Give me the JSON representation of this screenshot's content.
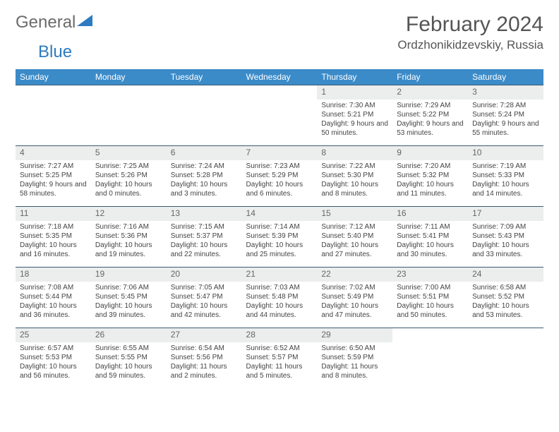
{
  "logo": {
    "main": "General",
    "accent": "Blue"
  },
  "header": {
    "title": "February 2024",
    "location": "Ordzhonikidzevskiy, Russia"
  },
  "colors": {
    "header_bg": "#3b8bc9",
    "header_text": "#ffffff",
    "daynum_bg": "#eceded",
    "week_divider": "#3b5b73",
    "logo_gray": "#6b6b6b",
    "logo_blue": "#2d7bc0"
  },
  "weekdays": [
    "Sunday",
    "Monday",
    "Tuesday",
    "Wednesday",
    "Thursday",
    "Friday",
    "Saturday"
  ],
  "first_weekday_index": 4,
  "days": [
    {
      "n": 1,
      "sr": "7:30 AM",
      "ss": "5:21 PM",
      "dl": "9 hours and 50 minutes."
    },
    {
      "n": 2,
      "sr": "7:29 AM",
      "ss": "5:22 PM",
      "dl": "9 hours and 53 minutes."
    },
    {
      "n": 3,
      "sr": "7:28 AM",
      "ss": "5:24 PM",
      "dl": "9 hours and 55 minutes."
    },
    {
      "n": 4,
      "sr": "7:27 AM",
      "ss": "5:25 PM",
      "dl": "9 hours and 58 minutes."
    },
    {
      "n": 5,
      "sr": "7:25 AM",
      "ss": "5:26 PM",
      "dl": "10 hours and 0 minutes."
    },
    {
      "n": 6,
      "sr": "7:24 AM",
      "ss": "5:28 PM",
      "dl": "10 hours and 3 minutes."
    },
    {
      "n": 7,
      "sr": "7:23 AM",
      "ss": "5:29 PM",
      "dl": "10 hours and 6 minutes."
    },
    {
      "n": 8,
      "sr": "7:22 AM",
      "ss": "5:30 PM",
      "dl": "10 hours and 8 minutes."
    },
    {
      "n": 9,
      "sr": "7:20 AM",
      "ss": "5:32 PM",
      "dl": "10 hours and 11 minutes."
    },
    {
      "n": 10,
      "sr": "7:19 AM",
      "ss": "5:33 PM",
      "dl": "10 hours and 14 minutes."
    },
    {
      "n": 11,
      "sr": "7:18 AM",
      "ss": "5:35 PM",
      "dl": "10 hours and 16 minutes."
    },
    {
      "n": 12,
      "sr": "7:16 AM",
      "ss": "5:36 PM",
      "dl": "10 hours and 19 minutes."
    },
    {
      "n": 13,
      "sr": "7:15 AM",
      "ss": "5:37 PM",
      "dl": "10 hours and 22 minutes."
    },
    {
      "n": 14,
      "sr": "7:14 AM",
      "ss": "5:39 PM",
      "dl": "10 hours and 25 minutes."
    },
    {
      "n": 15,
      "sr": "7:12 AM",
      "ss": "5:40 PM",
      "dl": "10 hours and 27 minutes."
    },
    {
      "n": 16,
      "sr": "7:11 AM",
      "ss": "5:41 PM",
      "dl": "10 hours and 30 minutes."
    },
    {
      "n": 17,
      "sr": "7:09 AM",
      "ss": "5:43 PM",
      "dl": "10 hours and 33 minutes."
    },
    {
      "n": 18,
      "sr": "7:08 AM",
      "ss": "5:44 PM",
      "dl": "10 hours and 36 minutes."
    },
    {
      "n": 19,
      "sr": "7:06 AM",
      "ss": "5:45 PM",
      "dl": "10 hours and 39 minutes."
    },
    {
      "n": 20,
      "sr": "7:05 AM",
      "ss": "5:47 PM",
      "dl": "10 hours and 42 minutes."
    },
    {
      "n": 21,
      "sr": "7:03 AM",
      "ss": "5:48 PM",
      "dl": "10 hours and 44 minutes."
    },
    {
      "n": 22,
      "sr": "7:02 AM",
      "ss": "5:49 PM",
      "dl": "10 hours and 47 minutes."
    },
    {
      "n": 23,
      "sr": "7:00 AM",
      "ss": "5:51 PM",
      "dl": "10 hours and 50 minutes."
    },
    {
      "n": 24,
      "sr": "6:58 AM",
      "ss": "5:52 PM",
      "dl": "10 hours and 53 minutes."
    },
    {
      "n": 25,
      "sr": "6:57 AM",
      "ss": "5:53 PM",
      "dl": "10 hours and 56 minutes."
    },
    {
      "n": 26,
      "sr": "6:55 AM",
      "ss": "5:55 PM",
      "dl": "10 hours and 59 minutes."
    },
    {
      "n": 27,
      "sr": "6:54 AM",
      "ss": "5:56 PM",
      "dl": "11 hours and 2 minutes."
    },
    {
      "n": 28,
      "sr": "6:52 AM",
      "ss": "5:57 PM",
      "dl": "11 hours and 5 minutes."
    },
    {
      "n": 29,
      "sr": "6:50 AM",
      "ss": "5:59 PM",
      "dl": "11 hours and 8 minutes."
    }
  ],
  "labels": {
    "sunrise": "Sunrise:",
    "sunset": "Sunset:",
    "daylight": "Daylight:"
  }
}
